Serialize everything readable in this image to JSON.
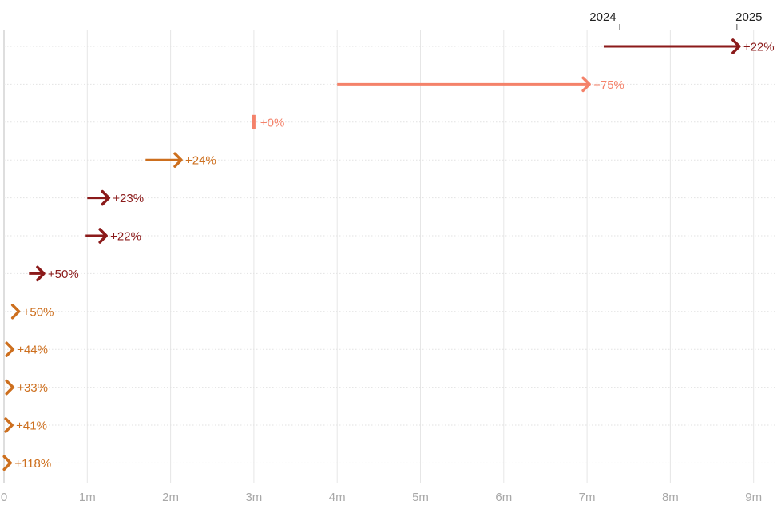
{
  "chart_data": {
    "type": "arrow",
    "x_ticks": [
      0,
      1,
      2,
      3,
      4,
      5,
      6,
      7,
      8,
      9
    ],
    "x_tick_labels": [
      "0",
      "1m",
      "2m",
      "3m",
      "4m",
      "5m",
      "6m",
      "7m",
      "8m",
      "9m"
    ],
    "xlim": [
      0,
      9.3
    ],
    "legend": {
      "start_label": "2024",
      "end_label": "2025"
    },
    "series": [
      {
        "from": 7.2,
        "to": 8.8,
        "label": "+22%",
        "color": "#8b1a1a"
      },
      {
        "from": 4.0,
        "to": 7.0,
        "label": "+75%",
        "color": "#f4826a"
      },
      {
        "from": 3.0,
        "to": 3.0,
        "label": "+0%",
        "color": "#f4826a"
      },
      {
        "from": 1.7,
        "to": 2.1,
        "label": "+24%",
        "color": "#cd6f1e"
      },
      {
        "from": 1.0,
        "to": 1.23,
        "label": "+23%",
        "color": "#8b1a1a"
      },
      {
        "from": 0.98,
        "to": 1.2,
        "label": "+22%",
        "color": "#8b1a1a"
      },
      {
        "from": 0.3,
        "to": 0.45,
        "label": "+50%",
        "color": "#8b1a1a"
      },
      {
        "from": 0.1,
        "to": 0.15,
        "label": "+50%",
        "color": "#cd6f1e"
      },
      {
        "from": 0.05,
        "to": 0.07,
        "label": "+44%",
        "color": "#cd6f1e"
      },
      {
        "from": 0.05,
        "to": 0.07,
        "label": "+33%",
        "color": "#cd6f1e"
      },
      {
        "from": 0.04,
        "to": 0.06,
        "label": "+41%",
        "color": "#cd6f1e"
      },
      {
        "from": 0.02,
        "to": 0.05,
        "label": "+118%",
        "color": "#cd6f1e"
      }
    ]
  }
}
